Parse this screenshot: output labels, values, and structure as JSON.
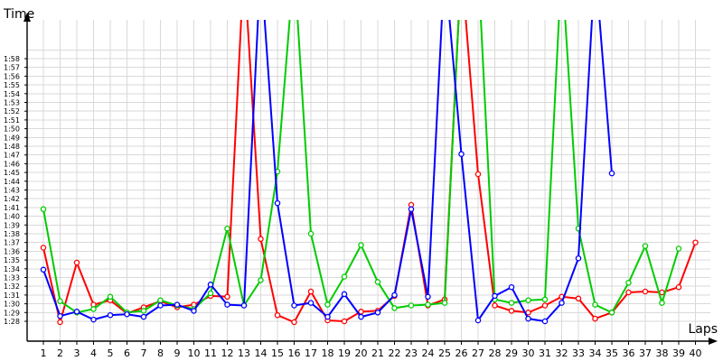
{
  "chart_data": {
    "type": "line",
    "ylabel": "Time",
    "xlabel": "Laps",
    "x": [
      1,
      2,
      3,
      4,
      5,
      6,
      7,
      8,
      9,
      10,
      11,
      12,
      13,
      14,
      15,
      16,
      17,
      18,
      19,
      20,
      21,
      22,
      23,
      24,
      25,
      26,
      27,
      28,
      29,
      30,
      31,
      32,
      33,
      34,
      35,
      36,
      37,
      38,
      39,
      40
    ],
    "ylim": [
      "1:27",
      "2:00"
    ],
    "yticks": [
      "1:28",
      "1:29",
      "1:30",
      "1:31",
      "1:32",
      "1:33",
      "1:34",
      "1:35",
      "1:36",
      "1:37",
      "1:38",
      "1:39",
      "1:40",
      "1:41",
      "1:42",
      "1:43",
      "1:44",
      "1:45",
      "1:46",
      "1:47",
      "1:48",
      "1:49",
      "1:50",
      "1:51",
      "1:52",
      "1:53",
      "1:54",
      "1:55",
      "1:56",
      "1:57",
      "1:58"
    ],
    "grid": true,
    "series": [
      {
        "color": "#ff0000",
        "values": [
          "1:36.4",
          "1:27.9",
          "1:34.7",
          "1:29.9",
          "1:30.4",
          "1:28.9",
          "1:29.6",
          "1:30.3",
          "1:29.6",
          "1:29.9",
          "1:30.9",
          "1:30.8",
          null,
          "1:37.4",
          "1:28.7",
          "1:27.9",
          "1:31.4",
          "1:28.1",
          "1:28.0",
          "1:29.1",
          "1:29.2",
          "1:30.9",
          "1:41.3",
          "1:29.8",
          "1:30.5",
          null,
          "1:44.8",
          "1:29.8",
          "1:29.2",
          "1:29.0",
          "1:29.8",
          "1:30.8",
          "1:30.6",
          "1:28.3",
          "1:29.0",
          "1:31.3",
          "1:31.4",
          "1:31.3",
          "1:31.9",
          "1:37.0"
        ]
      },
      {
        "color": "#00cc00",
        "values": [
          "1:40.8",
          "1:30.3",
          "1:29.0",
          "1:29.4",
          "1:30.8",
          "1:29.0",
          "1:29.2",
          "1:30.4",
          "1:29.8",
          "1:29.4",
          "1:31.2",
          "1:38.6",
          "1:29.8",
          "1:32.7",
          "1:45.1",
          null,
          "1:38.0",
          "1:29.9",
          "1:33.1",
          "1:36.7",
          "1:32.5",
          "1:29.5",
          "1:29.8",
          "1:29.9",
          "1:30.1",
          null,
          null,
          "1:30.5",
          "1:30.1",
          "1:30.4",
          "1:30.5",
          null,
          "1:38.6",
          "1:29.9",
          "1:29.0",
          "1:32.4",
          "1:36.6",
          "1:30.1",
          "1:36.3",
          null
        ]
      },
      {
        "color": "#0000ff",
        "values": [
          "1:33.9",
          "1:28.6",
          "1:29.1",
          "1:28.2",
          "1:28.7",
          "1:28.8",
          "1:28.5",
          "1:29.8",
          "1:29.9",
          "1:29.2",
          "1:32.2",
          "1:29.9",
          "1:29.8",
          null,
          "1:41.5",
          "1:29.8",
          "1:30.1",
          "1:28.5",
          "1:31.1",
          "1:28.5",
          "1:29.0",
          "1:31.0",
          "1:40.8",
          "1:30.8",
          null,
          "1:47.1",
          "1:28.1",
          "1:30.9",
          "1:31.9",
          "1:28.3",
          "1:28.0",
          "1:30.1",
          "1:35.2",
          null,
          "1:44.9",
          null,
          null,
          null,
          null,
          null
        ]
      }
    ]
  }
}
